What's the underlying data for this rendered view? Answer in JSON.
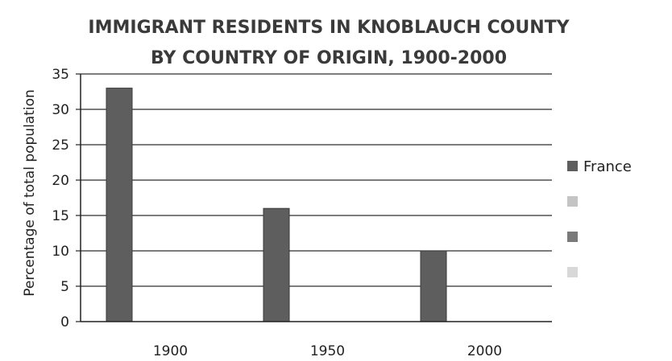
{
  "chart_data": {
    "type": "bar",
    "title_lines": [
      "IMMIGRANT RESIDENTS IN KNOBLAUCH COUNTY",
      "BY COUNTRY OF ORIGIN, 1900-2000"
    ],
    "ylabel": "Percentage of total population",
    "xlabel": "",
    "categories": [
      "1900",
      "1950",
      "2000"
    ],
    "series": [
      {
        "name": "France",
        "values": [
          33,
          16,
          10
        ],
        "color": "#5e5e5e"
      },
      {
        "name": "",
        "values": [
          0,
          0,
          0
        ],
        "color": "#c4c4c4"
      },
      {
        "name": "",
        "values": [
          0,
          0,
          0
        ],
        "color": "#7a7a7a"
      },
      {
        "name": "",
        "values": [
          0,
          0,
          0
        ],
        "color": "#d8d8d8"
      }
    ],
    "ylim": [
      0,
      35
    ],
    "yticks": [
      0,
      5,
      10,
      15,
      20,
      25,
      30,
      35
    ],
    "grid": true,
    "legend": "right"
  }
}
